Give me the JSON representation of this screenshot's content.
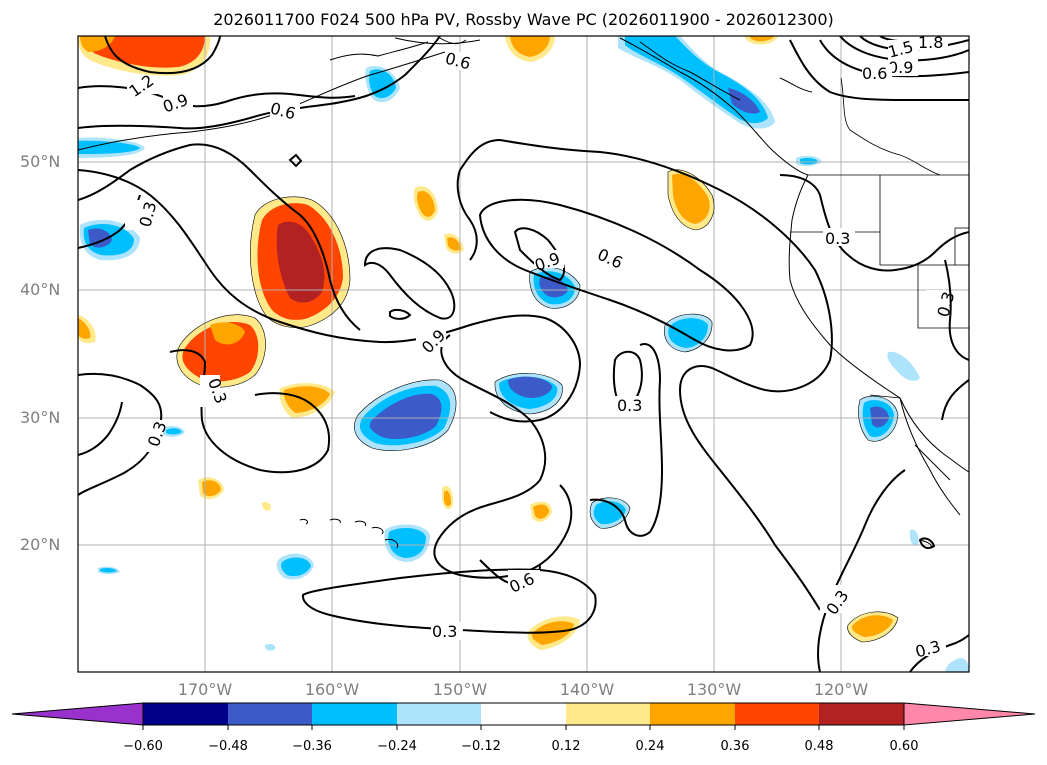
{
  "title": "2026011700 F024 500 hPa PV, Rossby Wave PC (2026011900 - 2026012300)",
  "lat_labels": [
    "50°N",
    "40°N",
    "30°N",
    "20°N"
  ],
  "lon_labels": [
    "170°W",
    "160°W",
    "150°W",
    "140°W",
    "130°W",
    "120°W"
  ],
  "contour_labels": [
    "1.2",
    "0.9",
    "0.6",
    "0.6",
    "1.5",
    "1.8",
    "0.9",
    "0.6",
    "0.3",
    "0.9",
    "0.6",
    "0.9",
    "0.3",
    "0.3",
    "0.3",
    "0.6",
    "0.3",
    "0.3",
    "0.3",
    "0.3"
  ],
  "colorbar": {
    "ticks": [
      "−0.60",
      "−0.48",
      "−0.36",
      "−0.24",
      "−0.12",
      "0.12",
      "0.24",
      "0.36",
      "0.48",
      "0.60"
    ],
    "colors": [
      "#9932cc",
      "#00008b",
      "#3c5ac8",
      "#00bfff",
      "#aee4fb",
      "#ffffff",
      "#ffe98a",
      "#ffa500",
      "#ff4500",
      "#b22222",
      "#ff88aa"
    ]
  },
  "fill_colors": {
    "neg_light": "#aee4fb",
    "neg_mid": "#00bfff",
    "neg_strong": "#3c5ac8",
    "neg_max": "#00008b",
    "pos_light": "#ffe98a",
    "pos_mid": "#ffa500",
    "pos_strong": "#ff4500",
    "pos_max": "#b22222"
  }
}
